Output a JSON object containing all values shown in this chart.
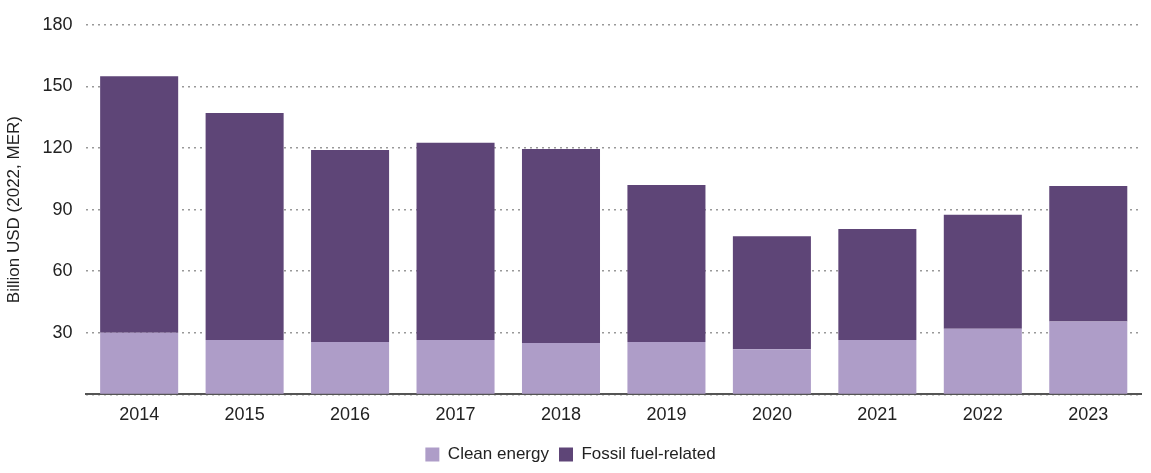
{
  "chart_data": {
    "type": "bar",
    "stacked": true,
    "ylabel": "Billion USD (2022, MER)",
    "categories": [
      "2014",
      "2015",
      "2016",
      "2017",
      "2018",
      "2019",
      "2020",
      "2021",
      "2022",
      "2023"
    ],
    "series": [
      {
        "name": "Clean energy",
        "color": "#ae9dc8",
        "values": [
          30,
          26.5,
          25.5,
          26.5,
          25,
          25.5,
          22,
          26.5,
          32,
          35.5
        ]
      },
      {
        "name": "Fossil fuel-related",
        "color": "#5e4577",
        "values": [
          125,
          110.5,
          93.5,
          96,
          94.5,
          76.5,
          55,
          54,
          55.5,
          66
        ]
      }
    ],
    "ylim": [
      0,
      180
    ],
    "yticks": [
      {
        "value": 0,
        "label": null
      },
      30,
      60,
      90,
      120,
      150,
      180
    ],
    "grid": "y",
    "line_style": "dotted",
    "legend": "bottom"
  }
}
